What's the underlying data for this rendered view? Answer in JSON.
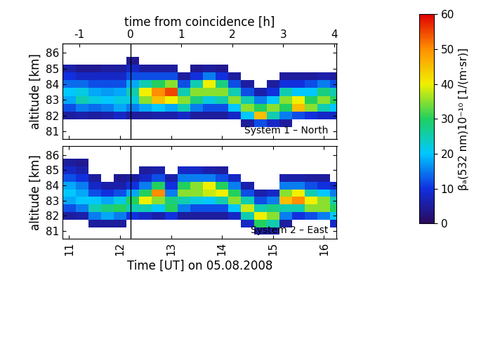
{
  "chart_data": [
    {
      "type": "heatmap",
      "annotation": "System 1 – North",
      "ylabel": "altitude [km]",
      "x2label": "time from coincidence [h]",
      "xlim": [
        10.87,
        16.25
      ],
      "xticks": [
        11,
        12,
        13,
        14,
        15,
        16
      ],
      "x2lim": [
        -1.33,
        4.05
      ],
      "x2ticks": [
        -1,
        0,
        1,
        2,
        3,
        4
      ],
      "ylim": [
        80.5,
        86.6
      ],
      "yticks": [
        81,
        82,
        83,
        84,
        85,
        86
      ],
      "tick_labels": "y",
      "vline_x": 12.2,
      "x": [
        11.0,
        11.25,
        11.5,
        11.75,
        12.0,
        12.25,
        12.5,
        12.75,
        13.0,
        13.25,
        13.5,
        13.75,
        14.0,
        14.25,
        14.5,
        14.75,
        15.0,
        15.25,
        15.5,
        15.75,
        16.0,
        16.25
      ],
      "y": [
        81.0,
        81.5,
        82.0,
        82.5,
        83.0,
        83.5,
        84.0,
        84.5,
        85.0,
        85.5,
        86.0
      ],
      "values": [
        [
          null,
          null,
          5,
          12,
          18,
          20,
          14,
          10,
          6,
          null,
          null
        ],
        [
          null,
          null,
          6,
          15,
          25,
          22,
          14,
          8,
          4,
          null,
          null
        ],
        [
          null,
          null,
          5,
          14,
          22,
          18,
          12,
          8,
          4,
          null,
          null
        ],
        [
          null,
          null,
          6,
          15,
          20,
          17,
          12,
          8,
          5,
          null,
          null
        ],
        [
          null,
          null,
          8,
          18,
          22,
          18,
          12,
          8,
          5,
          null,
          null
        ],
        [
          null,
          null,
          5,
          15,
          22,
          25,
          18,
          12,
          8,
          4,
          null
        ],
        [
          null,
          null,
          5,
          18,
          35,
          40,
          25,
          12,
          5,
          null,
          null
        ],
        [
          null,
          null,
          6,
          20,
          45,
          50,
          30,
          12,
          5,
          null,
          null
        ],
        [
          null,
          null,
          6,
          18,
          40,
          55,
          35,
          12,
          5,
          null,
          null
        ],
        [
          null,
          null,
          8,
          25,
          35,
          25,
          12,
          5,
          null,
          null,
          null
        ],
        [
          null,
          null,
          5,
          15,
          28,
          35,
          25,
          10,
          4,
          null,
          null
        ],
        [
          null,
          null,
          5,
          12,
          22,
          35,
          40,
          15,
          5,
          null,
          null
        ],
        [
          null,
          null,
          5,
          12,
          25,
          35,
          28,
          10,
          4,
          null,
          null
        ],
        [
          null,
          null,
          8,
          20,
          35,
          25,
          12,
          5,
          null,
          null,
          null
        ],
        [
          null,
          5,
          20,
          35,
          25,
          12,
          5,
          null,
          null,
          null,
          null
        ],
        [
          null,
          12,
          45,
          30,
          15,
          6,
          null,
          null,
          null,
          null,
          null
        ],
        [
          null,
          8,
          25,
          35,
          20,
          10,
          5,
          null,
          null,
          null,
          null
        ],
        [
          null,
          5,
          15,
          30,
          35,
          25,
          10,
          5,
          null,
          null,
          null
        ],
        [
          null,
          null,
          12,
          45,
          40,
          20,
          10,
          5,
          null,
          null,
          null
        ],
        [
          null,
          null,
          10,
          35,
          30,
          20,
          12,
          5,
          null,
          null,
          null
        ],
        [
          null,
          null,
          8,
          25,
          35,
          28,
          15,
          6,
          null,
          null,
          null
        ],
        [
          null,
          null,
          8,
          20,
          30,
          25,
          12,
          5,
          null,
          null,
          null
        ]
      ],
      "colorbar": {
        "label": "βₐ(532 nm)10⁻¹⁰ [1/(m·sr)]",
        "range": [
          0,
          60
        ],
        "ticks": [
          0,
          10,
          20,
          30,
          40,
          50,
          60
        ]
      }
    },
    {
      "type": "heatmap",
      "annotation": "System 2 – East",
      "ylabel": "altitude [km]",
      "xlabel": "Time [UT] on 05.08.2008",
      "xlim": [
        10.87,
        16.25
      ],
      "xticks": [
        11,
        12,
        13,
        14,
        15,
        16
      ],
      "ylim": [
        80.5,
        86.6
      ],
      "yticks": [
        81,
        82,
        83,
        84,
        85,
        86
      ],
      "vline_x": 12.2,
      "x": [
        11.0,
        11.25,
        11.5,
        11.75,
        12.0,
        12.25,
        12.5,
        12.75,
        13.0,
        13.25,
        13.5,
        13.75,
        14.0,
        14.25,
        14.5,
        14.75,
        15.0,
        15.25,
        15.5,
        15.75,
        16.0,
        16.25
      ],
      "y": [
        81.0,
        81.5,
        82.0,
        82.5,
        83.0,
        83.5,
        84.0,
        84.5,
        85.0,
        85.5,
        86.0
      ],
      "values": [
        [
          null,
          null,
          5,
          12,
          18,
          20,
          18,
          12,
          8,
          5,
          null
        ],
        [
          null,
          null,
          6,
          15,
          20,
          18,
          15,
          10,
          6,
          4,
          null
        ],
        [
          null,
          5,
          15,
          25,
          20,
          12,
          8,
          5,
          null,
          null,
          null
        ],
        [
          null,
          5,
          18,
          28,
          18,
          10,
          6,
          null,
          null,
          null,
          null
        ],
        [
          null,
          5,
          15,
          30,
          22,
          12,
          6,
          4,
          null,
          null,
          null
        ],
        [
          null,
          null,
          10,
          25,
          30,
          18,
          10,
          5,
          null,
          null,
          null
        ],
        [
          null,
          null,
          8,
          25,
          40,
          30,
          15,
          8,
          5,
          null,
          null
        ],
        [
          null,
          null,
          6,
          20,
          35,
          50,
          30,
          12,
          6,
          null,
          null
        ],
        [
          null,
          null,
          10,
          30,
          28,
          15,
          10,
          6,
          null,
          null,
          null
        ],
        [
          null,
          null,
          5,
          15,
          25,
          35,
          30,
          15,
          8,
          null,
          null
        ],
        [
          null,
          null,
          5,
          12,
          22,
          35,
          35,
          15,
          8,
          null,
          null
        ],
        [
          null,
          null,
          5,
          12,
          20,
          38,
          40,
          15,
          6,
          null,
          null
        ],
        [
          null,
          null,
          5,
          12,
          25,
          40,
          30,
          12,
          5,
          null,
          null
        ],
        [
          null,
          null,
          8,
          20,
          35,
          30,
          15,
          8,
          null,
          null,
          null
        ],
        [
          null,
          8,
          25,
          38,
          25,
          12,
          6,
          null,
          null,
          null,
          null
        ],
        [
          5,
          30,
          40,
          25,
          12,
          6,
          null,
          null,
          null,
          null,
          null
        ],
        [
          5,
          25,
          35,
          28,
          15,
          8,
          null,
          null,
          null,
          null,
          null
        ],
        [
          null,
          5,
          15,
          25,
          45,
          35,
          15,
          6,
          null,
          null,
          null
        ],
        [
          null,
          null,
          10,
          25,
          50,
          40,
          15,
          6,
          null,
          null,
          null
        ],
        [
          null,
          null,
          12,
          35,
          40,
          25,
          12,
          5,
          null,
          null,
          null
        ],
        [
          null,
          null,
          15,
          35,
          35,
          20,
          10,
          5,
          null,
          null,
          null
        ],
        [
          null,
          8,
          20,
          30,
          25,
          15,
          8,
          null,
          null,
          null,
          null
        ]
      ]
    }
  ]
}
